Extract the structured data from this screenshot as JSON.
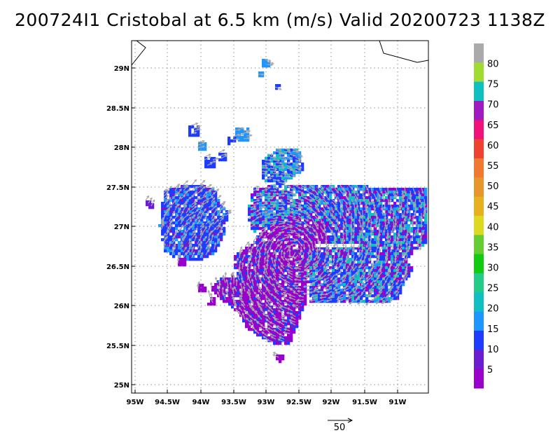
{
  "title": "200724I1 Cristobal at 6.5 km (m/s) Valid 20200723 1138Z",
  "map": {
    "lat_labels": [
      "25N",
      "25.5N",
      "26N",
      "26.5N",
      "27N",
      "27.5N",
      "28N",
      "28.5N",
      "29N"
    ],
    "lon_labels": [
      "95W",
      "94.5W",
      "94W",
      "93.5W",
      "93W",
      "92.5W",
      "92W",
      "91.5W",
      "91W"
    ],
    "gridlines": "dotted",
    "coastline_color": "#000000",
    "vector_color": "#a8a8a8"
  },
  "colorbar": {
    "labels": [
      "5",
      "10",
      "15",
      "20",
      "25",
      "30",
      "35",
      "40",
      "45",
      "50",
      "55",
      "60",
      "65",
      "70",
      "75",
      "80"
    ],
    "colors": [
      "#9900cc",
      "#6a1ed0",
      "#1e3cff",
      "#1e96ff",
      "#10c0c0",
      "#22cc88",
      "#10cc10",
      "#66cc33",
      "#ddd820",
      "#e6b020",
      "#e6962a",
      "#f07830",
      "#f04030",
      "#f0127a",
      "#9f1bbf",
      "#10c0c0",
      "#a0dc30",
      "#aaaaaa"
    ]
  },
  "reference_vector": {
    "label": "50"
  }
}
